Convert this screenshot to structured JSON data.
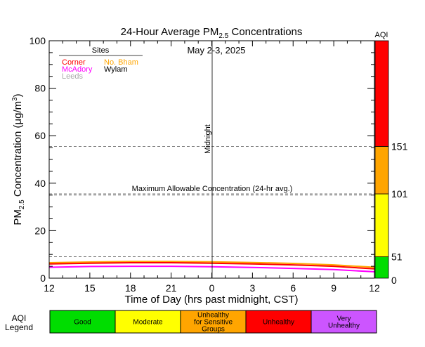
{
  "chart_data": {
    "type": "line",
    "title_main": "24-Hour Average PM",
    "title_sub": "2.5",
    "title_rest": " Concentrations",
    "date": "May 2-3, 2025",
    "xlabel": "Time of Day (hrs past midnight, CST)",
    "ylabel_main": "PM",
    "ylabel_sub": "2.5",
    "ylabel_rest": " Concentration (μg/m",
    "ylabel_sup": "3",
    "ylabel_end": ")",
    "x_ticks": [
      "12",
      "15",
      "18",
      "21",
      "0",
      "3",
      "6",
      "9",
      "12"
    ],
    "y_ticks": [
      "0",
      "20",
      "40",
      "60",
      "80",
      "100"
    ],
    "ylim": [
      0,
      100
    ],
    "xlim_hours": [
      0,
      24
    ],
    "midnight_label": "Midnight",
    "midnight_hour": 12,
    "reference_lines": [
      {
        "value": 9,
        "style": "dashed"
      },
      {
        "value": 35,
        "style": "dashed"
      },
      {
        "value": 35.5,
        "style": "dashed"
      },
      {
        "value": 55.5,
        "style": "dashed"
      }
    ],
    "max_allowable_label": "Maximum Allowable Concentration (24-hr avg.)",
    "legend_title": "Sites",
    "legend": [
      {
        "name": "Corner",
        "color": "#ff0000"
      },
      {
        "name": "No. Bham",
        "color": "#ffa500"
      },
      {
        "name": "McAdory",
        "color": "#ff00ff"
      },
      {
        "name": "Wylam",
        "color": "#000000"
      },
      {
        "name": "Leeds",
        "color": "#aaaaaa"
      }
    ],
    "series": [
      {
        "name": "No. Bham",
        "color": "#ffa500",
        "x": [
          0,
          3,
          6,
          9,
          12,
          15,
          18,
          21,
          24
        ],
        "y": [
          6.5,
          6.8,
          7.0,
          7.0,
          6.9,
          6.6,
          6.2,
          5.6,
          4.6
        ]
      },
      {
        "name": "Corner",
        "color": "#ff0000",
        "x": [
          0,
          3,
          6,
          9,
          12,
          15,
          18,
          21,
          24
        ],
        "y": [
          6.0,
          6.3,
          6.5,
          6.5,
          6.3,
          6.0,
          5.6,
          5.0,
          3.9
        ]
      },
      {
        "name": "McAdory",
        "color": "#ff00ff",
        "x": [
          0,
          3,
          6,
          9,
          12,
          15,
          18,
          21,
          24
        ],
        "y": [
          4.6,
          4.9,
          5.0,
          5.0,
          4.8,
          4.5,
          4.1,
          3.6,
          2.7
        ]
      }
    ],
    "aqi_title": "AQI",
    "aqi_bands": [
      {
        "from": 0,
        "to": 9,
        "color": "#00dd00"
      },
      {
        "from": 9,
        "to": 35.5,
        "color": "#ffff00"
      },
      {
        "from": 35.5,
        "to": 55.5,
        "color": "#ffa500"
      },
      {
        "from": 55.5,
        "to": 100,
        "color": "#ff0000"
      }
    ],
    "aqi_labels": [
      {
        "text": "0",
        "at": 0
      },
      {
        "text": "51",
        "at": 9
      },
      {
        "text": "101",
        "at": 35.5
      },
      {
        "text": "151",
        "at": 55.5
      }
    ],
    "aqi_legend_title": [
      "AQI",
      "Legend"
    ],
    "aqi_legend": [
      {
        "label": "Good",
        "color": "#00dd00"
      },
      {
        "label": "Moderate",
        "color": "#ffff00"
      },
      {
        "label": "Unhealthy for Sensitive Groups",
        "color": "#ffa500"
      },
      {
        "label": "Unhealthy",
        "color": "#ff0000"
      },
      {
        "label": "Very Unhealthy",
        "color": "#cc55ff"
      }
    ]
  }
}
